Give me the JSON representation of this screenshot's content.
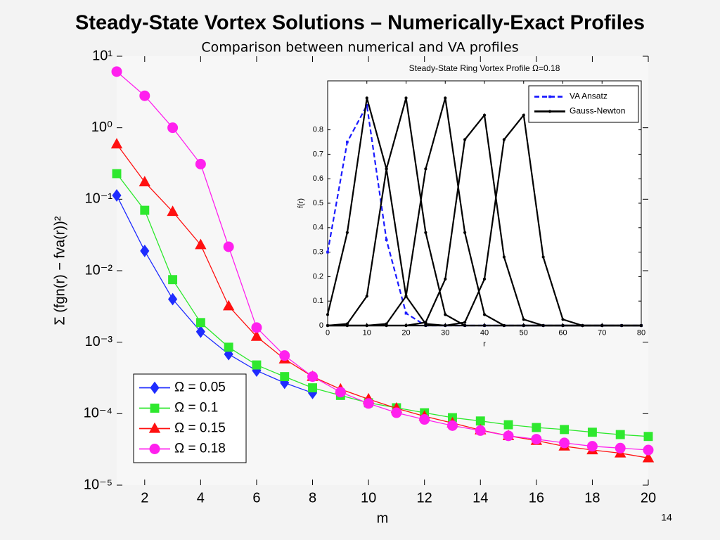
{
  "chart_data": [
    {
      "type": "line",
      "title": "Steady-State Vortex Solutions – Numerically-Exact Profiles",
      "subtitle": "Comparison between numerical and VA profiles",
      "xlabel": "m",
      "ylabel": "Σ (fgn(r) − fva(r))²",
      "log_y": true,
      "legend": "lower left",
      "xlim": [
        1,
        20
      ],
      "xticks": [
        2,
        4,
        6,
        8,
        10,
        12,
        14,
        16,
        18,
        20
      ],
      "ylim": [
        1e-05,
        10
      ],
      "yticks": [
        {
          "value": 1e-05,
          "label": "10⁻⁵"
        },
        {
          "value": 0.0001,
          "label": "10⁻⁴"
        },
        {
          "value": 0.001,
          "label": "10⁻³"
        },
        {
          "value": 0.01,
          "label": "10⁻²"
        },
        {
          "value": 0.1,
          "label": "10⁻¹"
        },
        {
          "value": 1,
          "label": "10⁰"
        },
        {
          "value": 10,
          "label": "10¹"
        }
      ],
      "x": [
        1,
        2,
        3,
        4,
        5,
        6,
        7,
        8,
        9,
        10,
        11,
        12,
        13,
        14,
        15,
        16,
        17,
        18,
        19,
        20
      ],
      "series": [
        {
          "name": "Ω = 0.05",
          "color": "#1f2cff",
          "marker": "diamond",
          "values": [
            0.113,
            0.0189,
            0.004,
            0.0014,
            0.00068,
            0.0004,
            0.00027,
            0.000195,
            null,
            null,
            null,
            null,
            null,
            null,
            null,
            null,
            null,
            null,
            null,
            null
          ]
        },
        {
          "name": "Ω = 0.1",
          "color": "#2ee82e",
          "marker": "square",
          "values": [
            0.228,
            0.07,
            0.0075,
            0.00188,
            0.00085,
            0.00048,
            0.00033,
            0.00023,
            0.00018,
            0.000142,
            0.000121,
            0.000103,
            8.8e-05,
            7.9e-05,
            7e-05,
            6.4e-05,
            6e-05,
            5.5e-05,
            5.1e-05,
            4.8e-05
          ]
        },
        {
          "name": "Ω = 0.15",
          "color": "#ff1010",
          "marker": "triangle",
          "values": [
            0.59,
            0.174,
            0.067,
            0.023,
            0.0032,
            0.0012,
            0.00058,
            0.00033,
            0.00022,
            0.00016,
            0.000119,
            9.2e-05,
            7.4e-05,
            5.9e-05,
            4.9e-05,
            4.2e-05,
            3.5e-05,
            3.1e-05,
            2.8e-05,
            2.4e-05
          ]
        },
        {
          "name": "Ω = 0.18",
          "color": "#ff20ee",
          "marker": "circle",
          "values": [
            6.1,
            2.8,
            1.0,
            0.31,
            0.0216,
            0.0016,
            0.00065,
            0.00033,
            0.0002,
            0.000139,
            0.000103,
            8.3e-05,
            6.8e-05,
            5.8e-05,
            4.9e-05,
            4.4e-05,
            3.9e-05,
            3.5e-05,
            3.3e-05,
            3.1e-05
          ]
        }
      ]
    },
    {
      "type": "line",
      "title": "Steady-State Ring Vortex Profile Ω=0.18",
      "xlabel": "r",
      "ylabel": "f(r)",
      "legend": "upper right",
      "xlim": [
        0,
        80
      ],
      "xticks": [
        0,
        10,
        20,
        30,
        40,
        50,
        60,
        70,
        80
      ],
      "ylim": [
        0,
        1
      ],
      "yticks": [
        0,
        0.1,
        0.2,
        0.3,
        0.4,
        0.5,
        0.6,
        0.7,
        0.8
      ],
      "x": [
        0,
        5,
        10,
        15,
        20,
        25,
        30,
        35,
        40,
        45,
        50,
        55,
        60,
        65,
        70,
        75,
        80
      ],
      "series": [
        {
          "name": "VA Ansatz",
          "color": "#1a1aff",
          "dashed": true,
          "values": [
            0.3,
            0.75,
            0.9,
            0.35,
            0.05,
            0,
            0,
            0,
            0,
            0,
            0,
            0,
            0,
            0,
            0,
            0,
            0
          ]
        },
        {
          "name": "Gauss-Newton",
          "color": "#000000",
          "dashed": false,
          "values": [
            0.045,
            0.38,
            0.93,
            0.64,
            0.12,
            0.007,
            0,
            0,
            0,
            0,
            0,
            0,
            0,
            0,
            0,
            0,
            0
          ]
        },
        {
          "name": "Gauss-Newton",
          "color": "#000000",
          "dashed": false,
          "values": [
            0,
            0.007,
            0.12,
            0.64,
            0.93,
            0.38,
            0.045,
            0,
            0,
            0,
            0,
            0,
            0,
            0,
            0,
            0,
            0
          ]
        },
        {
          "name": "Gauss-Newton",
          "color": "#000000",
          "dashed": false,
          "values": [
            0,
            0,
            0,
            0.007,
            0.12,
            0.64,
            0.93,
            0.38,
            0.045,
            0,
            0,
            0,
            0,
            0,
            0,
            0,
            0
          ]
        },
        {
          "name": "Gauss-Newton",
          "color": "#000000",
          "dashed": false,
          "values": [
            0,
            0,
            0,
            0,
            0,
            0.013,
            0.19,
            0.76,
            0.86,
            0.28,
            0.025,
            0,
            0,
            0,
            0,
            0,
            0
          ]
        },
        {
          "name": "Gauss-Newton",
          "color": "#000000",
          "dashed": false,
          "values": [
            0,
            0,
            0,
            0,
            0,
            0,
            0,
            0.013,
            0.19,
            0.76,
            0.86,
            0.28,
            0.025,
            0,
            0,
            0,
            0
          ]
        }
      ]
    }
  ],
  "page_number": 14
}
